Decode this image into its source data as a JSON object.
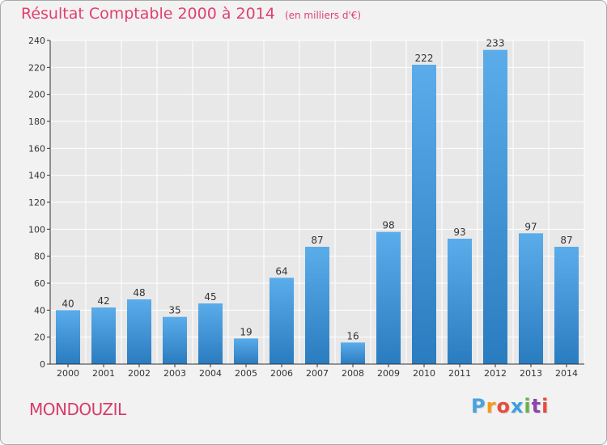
{
  "title": "Résultat Comptable 2000 à 2014",
  "unit": "(en milliers d'€)",
  "commune": "MONDOUZIL",
  "logo": {
    "letters": [
      "P",
      "r",
      "o",
      "x",
      "i",
      "t",
      "i"
    ],
    "colors": [
      "#4aa3df",
      "#f39c12",
      "#e74c3c",
      "#3aa0e0",
      "#6ab04c",
      "#8e44ad",
      "#e74c3c"
    ]
  },
  "colors": {
    "bar_top": "#5aacea",
    "bar_bottom": "#2a7cc0",
    "title": "#e0406f",
    "grid": "#ffffff",
    "axis": "#333333"
  },
  "chart_data": {
    "type": "bar",
    "categories": [
      "2000",
      "2001",
      "2002",
      "2003",
      "2004",
      "2005",
      "2006",
      "2007",
      "2008",
      "2009",
      "2010",
      "2011",
      "2012",
      "2013",
      "2014"
    ],
    "values": [
      40,
      42,
      48,
      35,
      45,
      19,
      64,
      87,
      16,
      98,
      222,
      93,
      233,
      97,
      87
    ],
    "ylim": [
      0,
      240
    ],
    "yticks": [
      0,
      20,
      40,
      60,
      80,
      100,
      120,
      140,
      160,
      180,
      200,
      220,
      240
    ],
    "grid": true,
    "data_labels": true
  }
}
